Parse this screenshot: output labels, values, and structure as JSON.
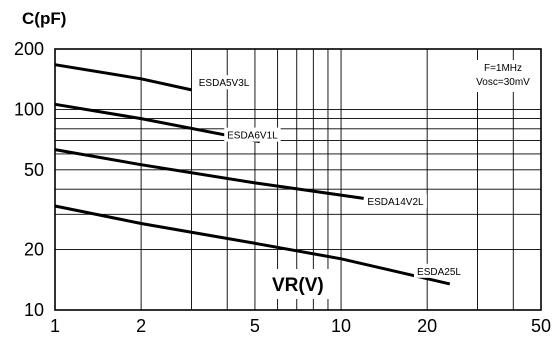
{
  "chart_data": {
    "type": "line",
    "title": "",
    "ylabel": "C(pF)",
    "xlabel": "VR(V)",
    "x_scale": "log",
    "y_scale": "log",
    "xlim": [
      1,
      50
    ],
    "ylim": [
      10,
      200
    ],
    "grid": true,
    "x_ticks": [
      "1",
      "2",
      "5",
      "10",
      "20",
      "50"
    ],
    "y_ticks": [
      "200",
      "100",
      "50",
      "20",
      "10"
    ],
    "x_tick_values": [
      1,
      2,
      5,
      10,
      20,
      50
    ],
    "y_tick_values": [
      200,
      100,
      50,
      20,
      10
    ],
    "x_gridlines": [
      1,
      2,
      3,
      4,
      5,
      6,
      7,
      8,
      9,
      10,
      20,
      30,
      40,
      50
    ],
    "y_gridlines": [
      10,
      20,
      30,
      40,
      50,
      60,
      70,
      80,
      90,
      100,
      200
    ],
    "annotation": [
      "F=1MHz",
      "Vosc=30mV"
    ],
    "series": [
      {
        "name": "ESDA5V3L",
        "x": [
          1,
          2,
          3
        ],
        "y": [
          167,
          142,
          125
        ]
      },
      {
        "name": "ESDA6V1L",
        "x": [
          1,
          2,
          5.2
        ],
        "y": [
          106,
          90,
          69
        ]
      },
      {
        "name": "ESDA14V2L",
        "x": [
          1,
          2,
          5,
          12
        ],
        "y": [
          63,
          53,
          43,
          36
        ]
      },
      {
        "name": "ESDA25L",
        "x": [
          1,
          2,
          5,
          10,
          24
        ],
        "y": [
          33,
          27,
          21.5,
          18,
          13.5
        ]
      }
    ],
    "series_label_x": [
      3.9,
      4.9,
      15.5,
      22
    ],
    "series_label_y": [
      135,
      74,
      34.5,
      15.5
    ]
  }
}
